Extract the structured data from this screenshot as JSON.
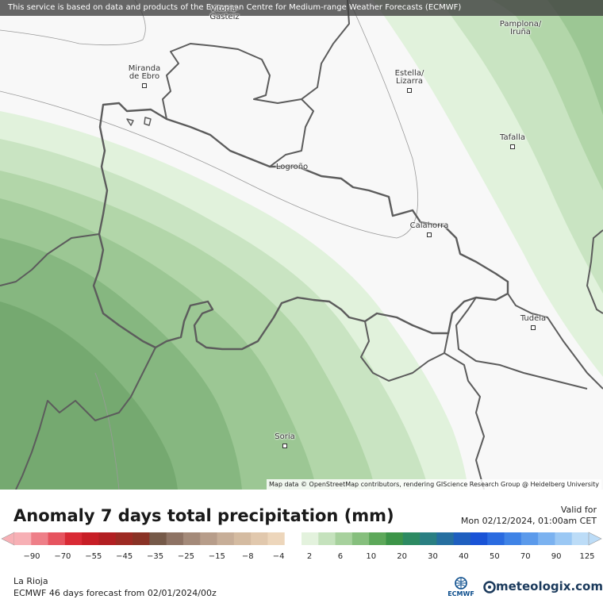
{
  "header": {
    "disclaimer": "This service is based on data and products of the European Centre for Medium-range Weather Forecasts (ECMWF)"
  },
  "map": {
    "attribution": "Map data © OpenStreetMap contributors, rendering GIScience Research Group @ Heidelberg University",
    "cities": [
      {
        "id": "vitoria-gasteiz",
        "label": "Vitoria-Gasteiz"
      },
      {
        "id": "pamplona-iruna",
        "label": "Pamplona/\nIruña"
      },
      {
        "id": "miranda-de-ebro",
        "label": "Miranda\nde Ebro"
      },
      {
        "id": "estella-lizarra",
        "label": "Estella/\nLizarra"
      },
      {
        "id": "tafalla",
        "label": "Tafalla"
      },
      {
        "id": "logrono",
        "label": "Logroño"
      },
      {
        "id": "calahorra",
        "label": "Calahorra"
      },
      {
        "id": "tudela",
        "label": "Tudela"
      },
      {
        "id": "soria",
        "label": "Soria"
      }
    ],
    "colors": {
      "background": "#f8f8f8",
      "band_2_6": "#e1f2dc",
      "band_6_10": "#c9e4c2",
      "band_10_15": "#b2d6a9",
      "band_15_20": "#9cc794",
      "band_20_30": "#86b780",
      "band_30_plus": "#75a970",
      "border": "#5c5c5c"
    }
  },
  "legend": {
    "title": "Anomaly 7 days total precipitation (mm)",
    "valid_label": "Valid for",
    "valid_date": "Mon 02/12/2024, 01:00am CET",
    "tick_labels": [
      "−90",
      "−70",
      "−55",
      "−45",
      "−35",
      "−25",
      "−15",
      "−8",
      "−4",
      "2",
      "6",
      "10",
      "20",
      "30",
      "40",
      "50",
      "70",
      "90",
      "125"
    ],
    "swatches": [
      "#f7b0b5",
      "#ee7f88",
      "#e6545f",
      "#d92a35",
      "#c71e26",
      "#b21f22",
      "#9d2a23",
      "#893225",
      "#765a49",
      "#8e7364",
      "#a48a79",
      "#b79d8a",
      "#c7ae98",
      "#d4bba1",
      "#e1c8ad",
      "#edd6bb",
      "#ffffff",
      "#e3f2dd",
      "#c5e2bd",
      "#a7d19d",
      "#86bf7d",
      "#5da85a",
      "#3c9448",
      "#2d8a62",
      "#2a7f82",
      "#266fa0",
      "#1f5fbf",
      "#1953d6",
      "#2a6be0",
      "#3f83e6",
      "#5b9aeb",
      "#7bb2f0",
      "#9bc8f4",
      "#bcdcf7"
    ]
  },
  "footer": {
    "region": "La Rioja",
    "forecast": "ECMWF 46 days forecast from  02/01/2024/00z",
    "ecmwf_logo_text": "ECMWF",
    "meteologix_logo_text": "meteologix.com"
  }
}
